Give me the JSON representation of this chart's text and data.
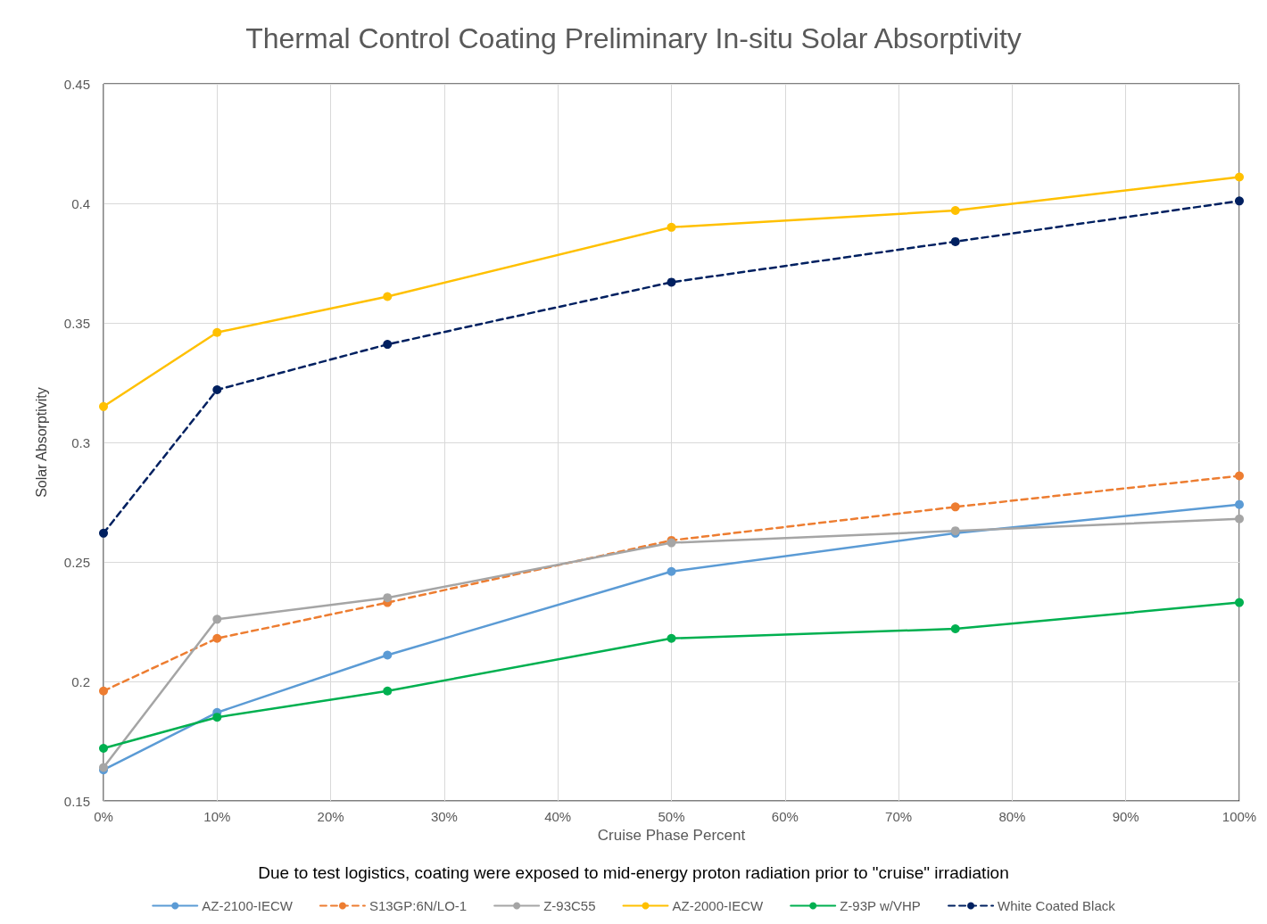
{
  "chart_data": {
    "type": "line",
    "title": "Thermal Control Coating Preliminary In-situ Solar Absorptivity",
    "xlabel": "Cruise Phase Percent",
    "ylabel": "Solar Absorptivity",
    "annotations": [
      "Due to test logistics, coating were exposed to mid-energy proton radiation prior to \"cruise\" irradiation"
    ],
    "x": [
      0,
      10,
      25,
      50,
      75,
      100
    ],
    "series": [
      {
        "name": "AZ-2100-IECW",
        "color": "#5b9bd5",
        "line_style": "solid",
        "values": [
          0.163,
          0.187,
          0.211,
          0.246,
          0.262,
          0.274
        ]
      },
      {
        "name": "S13GP:6N/LO-1",
        "color": "#ed7d31",
        "line_style": "dashed",
        "values": [
          0.196,
          0.218,
          0.233,
          0.259,
          0.273,
          0.286
        ]
      },
      {
        "name": "Z-93C55",
        "color": "#a5a5a5",
        "line_style": "solid",
        "values": [
          0.164,
          0.226,
          0.235,
          0.258,
          0.263,
          0.268
        ]
      },
      {
        "name": "AZ-2000-IECW",
        "color": "#ffc000",
        "line_style": "solid",
        "values": [
          0.315,
          0.346,
          0.361,
          0.39,
          0.397,
          0.411
        ]
      },
      {
        "name": "Z-93P w/VHP",
        "color": "#00b050",
        "line_style": "solid",
        "values": [
          0.172,
          0.185,
          0.196,
          0.218,
          0.222,
          0.233
        ]
      },
      {
        "name": "White Coated Black",
        "color": "#002060",
        "line_style": "dashed",
        "values": [
          0.262,
          0.322,
          0.341,
          0.367,
          0.384,
          0.401
        ]
      }
    ],
    "xlim": [
      0,
      100
    ],
    "xticks": [
      {
        "value": 0,
        "label": "0%"
      },
      {
        "value": 10,
        "label": "10%"
      },
      {
        "value": 20,
        "label": "20%"
      },
      {
        "value": 30,
        "label": "30%"
      },
      {
        "value": 40,
        "label": "40%"
      },
      {
        "value": 50,
        "label": "50%"
      },
      {
        "value": 60,
        "label": "60%"
      },
      {
        "value": 70,
        "label": "70%"
      },
      {
        "value": 80,
        "label": "80%"
      },
      {
        "value": 90,
        "label": "90%"
      },
      {
        "value": 100,
        "label": "100%"
      }
    ],
    "ylim": [
      0.15,
      0.45
    ],
    "yticks": [
      0.15,
      0.2,
      0.25,
      0.3,
      0.35,
      0.4,
      0.45
    ],
    "grid": true,
    "legend": "bottom",
    "marker": "circle"
  }
}
